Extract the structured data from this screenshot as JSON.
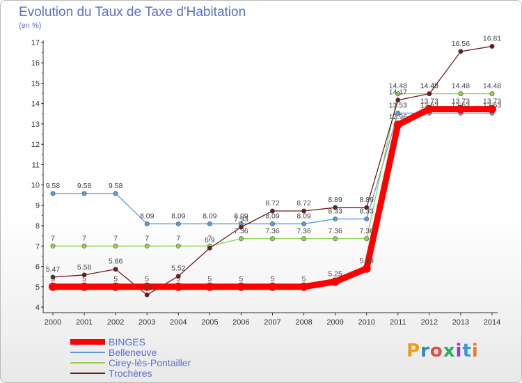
{
  "chart_data": {
    "type": "line",
    "title": "Evolution du Taux de Taxe d'Habitation",
    "subtitle": "(en %)",
    "x": [
      2000,
      2001,
      2002,
      2003,
      2004,
      2005,
      2006,
      2007,
      2008,
      2009,
      2010,
      2011,
      2012,
      2013,
      2014
    ],
    "ylim": [
      4,
      17
    ],
    "yticks": [
      4,
      5,
      6,
      7,
      8,
      9,
      10,
      11,
      12,
      13,
      14,
      15,
      16,
      17
    ],
    "grid": false,
    "series": [
      {
        "name": "BINGES",
        "color": "#ff0000",
        "values": [
          5,
          5,
          5,
          5,
          5,
          5,
          5,
          5,
          5,
          5.25,
          5.89,
          12.96,
          13.73,
          13.73,
          13.73
        ]
      },
      {
        "name": "Belleneuve",
        "color": "#5b9bd5",
        "values": [
          9.58,
          9.58,
          9.58,
          8.09,
          8.09,
          8.09,
          8.09,
          8.09,
          8.09,
          8.33,
          8.33,
          13.53,
          13.53,
          13.53,
          13.53
        ]
      },
      {
        "name": "Cirey-lès-Pontailler",
        "color": "#8fd14f",
        "values": [
          7,
          7,
          7,
          7,
          7,
          7,
          7.36,
          7.36,
          7.36,
          7.36,
          7.36,
          14.48,
          14.48,
          14.48,
          14.48
        ]
      },
      {
        "name": "Trochères",
        "color": "#6b1b1b",
        "values": [
          5.47,
          5.58,
          5.86,
          4.6,
          5.52,
          6.9,
          7.93,
          8.72,
          8.72,
          8.89,
          8.89,
          14.17,
          14.48,
          16.56,
          16.81
        ]
      }
    ]
  },
  "legend": [
    "BINGES",
    "Belleneuve",
    "Cirey-lès-Pontailler",
    "Trochères"
  ],
  "logo": {
    "text": "Proxiti",
    "colors": [
      "#f39c12",
      "#2e86c1",
      "#e74c3c",
      "#27ae60",
      "#8e44ad",
      "#3498db",
      "#e67e22"
    ]
  }
}
